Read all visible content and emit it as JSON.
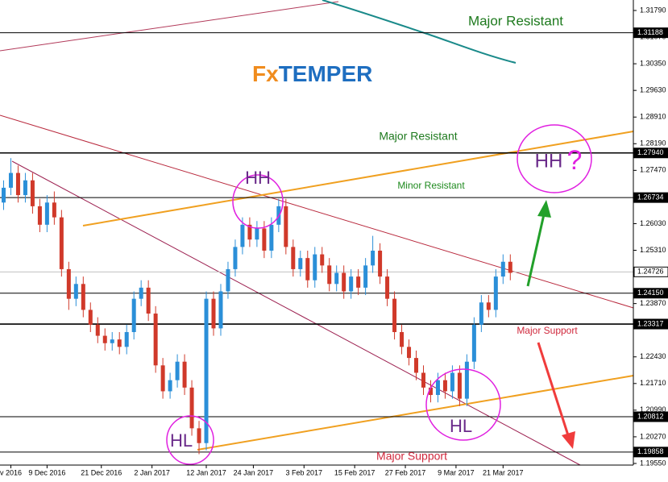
{
  "chart_data": {
    "type": "candlestick",
    "open": [
      1.266,
      1.27,
      1.274,
      1.268,
      1.272,
      1.265,
      1.26,
      1.266,
      1.262,
      1.248,
      1.24,
      1.244,
      1.237,
      1.233,
      1.23,
      1.228,
      1.229,
      1.227,
      1.231,
      1.24,
      1.243,
      1.236,
      1.222,
      1.215,
      1.218,
      1.223,
      1.216,
      1.205,
      1.201,
      1.24,
      1.232,
      1.242,
      1.248,
      1.254,
      1.26,
      1.256,
      1.259,
      1.253,
      1.26,
      1.265,
      1.254,
      1.248,
      1.251,
      1.245,
      1.252,
      1.249,
      1.244,
      1.247,
      1.242,
      1.246,
      1.243,
      1.249,
      1.253,
      1.246,
      1.24,
      1.231,
      1.227,
      1.224,
      1.22,
      1.216,
      1.214,
      1.218,
      1.215,
      1.22,
      1.213,
      1.223,
      1.233,
      1.239,
      1.237,
      1.246,
      1.25
    ],
    "high": [
      1.272,
      1.278,
      1.276,
      1.274,
      1.274,
      1.267,
      1.268,
      1.269,
      1.264,
      1.25,
      1.246,
      1.246,
      1.239,
      1.235,
      1.232,
      1.231,
      1.231,
      1.233,
      1.242,
      1.245,
      1.245,
      1.238,
      1.224,
      1.22,
      1.225,
      1.225,
      1.218,
      1.207,
      1.242,
      1.242,
      1.244,
      1.25,
      1.256,
      1.262,
      1.262,
      1.261,
      1.261,
      1.262,
      1.267,
      1.267,
      1.256,
      1.253,
      1.253,
      1.254,
      1.254,
      1.251,
      1.249,
      1.249,
      1.248,
      1.248,
      1.251,
      1.257,
      1.255,
      1.248,
      1.242,
      1.233,
      1.229,
      1.226,
      1.222,
      1.218,
      1.22,
      1.22,
      1.222,
      1.222,
      1.225,
      1.235,
      1.241,
      1.241,
      1.248,
      1.252,
      1.252
    ],
    "low": [
      1.264,
      1.268,
      1.266,
      1.266,
      1.263,
      1.258,
      1.258,
      1.26,
      1.246,
      1.237,
      1.238,
      1.235,
      1.231,
      1.228,
      1.226,
      1.226,
      1.225,
      1.225,
      1.229,
      1.238,
      1.234,
      1.22,
      1.213,
      1.213,
      1.216,
      1.214,
      1.203,
      1.198,
      1.199,
      1.23,
      1.23,
      1.24,
      1.246,
      1.252,
      1.254,
      1.254,
      1.251,
      1.251,
      1.258,
      1.252,
      1.246,
      1.246,
      1.243,
      1.243,
      1.247,
      1.242,
      1.242,
      1.24,
      1.24,
      1.241,
      1.241,
      1.247,
      1.244,
      1.238,
      1.229,
      1.225,
      1.222,
      1.218,
      1.214,
      1.212,
      1.212,
      1.213,
      1.213,
      1.211,
      1.211,
      1.221,
      1.231,
      1.235,
      1.235,
      1.244,
      1.245
    ],
    "close": [
      1.27,
      1.274,
      1.268,
      1.272,
      1.265,
      1.26,
      1.266,
      1.262,
      1.248,
      1.24,
      1.244,
      1.237,
      1.233,
      1.23,
      1.228,
      1.229,
      1.227,
      1.231,
      1.24,
      1.243,
      1.236,
      1.222,
      1.215,
      1.218,
      1.223,
      1.216,
      1.205,
      1.201,
      1.24,
      1.232,
      1.242,
      1.248,
      1.254,
      1.26,
      1.256,
      1.259,
      1.253,
      1.26,
      1.265,
      1.254,
      1.248,
      1.251,
      1.245,
      1.252,
      1.249,
      1.244,
      1.247,
      1.242,
      1.246,
      1.243,
      1.249,
      1.253,
      1.246,
      1.24,
      1.231,
      1.227,
      1.224,
      1.22,
      1.216,
      1.214,
      1.218,
      1.215,
      1.22,
      1.213,
      1.223,
      1.233,
      1.239,
      1.237,
      1.246,
      1.25,
      1.247
    ],
    "up_color": "#2b8fd8",
    "down_color": "#d0392a",
    "ylim": [
      1.19506,
      1.32073
    ],
    "xlim": [
      -0.5,
      87
    ],
    "yticks": [
      {
        "value": 1.3179,
        "label": "1.31790"
      },
      {
        "value": 1.3107,
        "label": "1.31070"
      },
      {
        "value": 1.3035,
        "label": "1.30350"
      },
      {
        "value": 1.2963,
        "label": "1.29630"
      },
      {
        "value": 1.2891,
        "label": "1.28910"
      },
      {
        "value": 1.2819,
        "label": "1.28190"
      },
      {
        "value": 1.2747,
        "label": "1.27470"
      },
      {
        "value": 1.2603,
        "label": "1.26030"
      },
      {
        "value": 1.2531,
        "label": "1.25310"
      },
      {
        "value": 1.2387,
        "label": "1.23870"
      },
      {
        "value": 1.2243,
        "label": "1.22430"
      },
      {
        "value": 1.2171,
        "label": "1.21710"
      },
      {
        "value": 1.2099,
        "label": "1.20990"
      },
      {
        "value": 1.2027,
        "label": "1.20270"
      },
      {
        "value": 1.1955,
        "label": "1.19550"
      }
    ],
    "xticks": [
      {
        "value": 1,
        "label": "v 2016"
      },
      {
        "value": 6,
        "label": "9 Dec 2016"
      },
      {
        "value": 13.5,
        "label": "21 Dec 2016"
      },
      {
        "value": 20.5,
        "label": "2 Jan 2017"
      },
      {
        "value": 28,
        "label": "12 Jan 2017"
      },
      {
        "value": 34.5,
        "label": "24 Jan 2017"
      },
      {
        "value": 41.5,
        "label": "3 Feb 2017"
      },
      {
        "value": 48.5,
        "label": "15 Feb 2017"
      },
      {
        "value": 55.5,
        "label": "27 Feb 2017"
      },
      {
        "value": 62.5,
        "label": "9 Mar 2017"
      },
      {
        "value": 69,
        "label": "21 Mar 2017"
      }
    ],
    "levels": [
      {
        "value": 1.31188,
        "label": "1.31188"
      },
      {
        "value": 1.2794,
        "label": "1.27940"
      },
      {
        "value": 1.26734,
        "label": "1.26734"
      },
      {
        "value": 1.24726,
        "label": "1.24726"
      },
      {
        "value": 1.2415,
        "label": "1.24150"
      },
      {
        "value": 1.23317,
        "label": "1.23317"
      },
      {
        "value": 1.20812,
        "label": "1.20812"
      },
      {
        "value": 1.19858,
        "label": "1.19858"
      }
    ],
    "logo": {
      "prefix": "Fx",
      "suffix": "TEMPER"
    },
    "annotations": [
      "Major Resistant",
      "Major Resistant",
      "Minor Resistant",
      "HH",
      "HH",
      "?",
      "Major Support",
      "HL",
      "HL",
      "Major Support"
    ]
  }
}
